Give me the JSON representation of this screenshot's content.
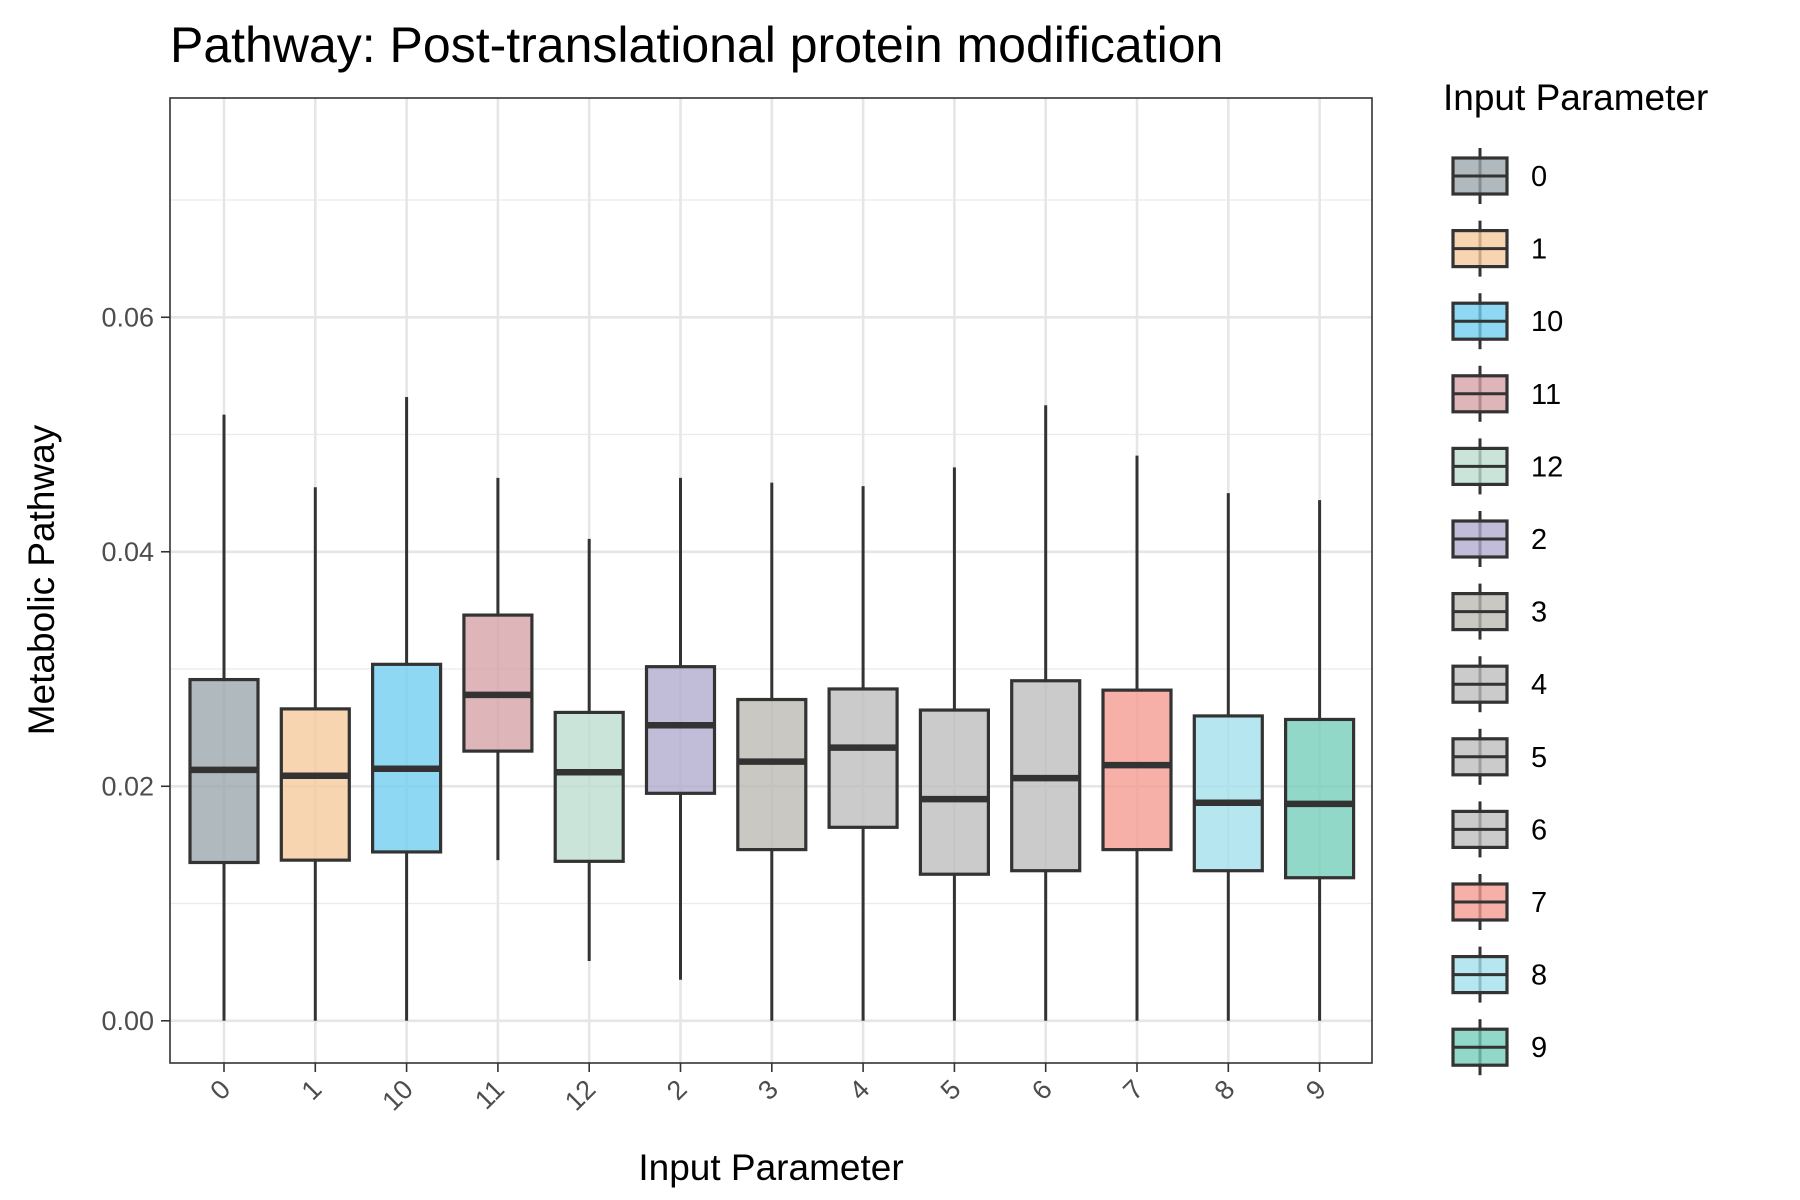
{
  "chart_data": {
    "type": "boxplot",
    "title": "Pathway: Post-translational protein modification",
    "xlabel": "Input Parameter",
    "ylabel": "Metabolic Pathway",
    "ylim": [
      -0.0036,
      0.0787
    ],
    "y_ticks": [
      "0.00",
      "0.02",
      "0.04",
      "0.06"
    ],
    "grid": true,
    "legend": {
      "title": "Input Parameter",
      "placement": "right"
    },
    "categories": [
      "0",
      "1",
      "10",
      "11",
      "12",
      "2",
      "3",
      "4",
      "5",
      "6",
      "7",
      "8",
      "9"
    ],
    "boxes": [
      {
        "category": "0",
        "whisker_low": 0.0,
        "q1": 0.0135,
        "median": 0.0214,
        "q3": 0.0291,
        "whisker_high": 0.0517,
        "color": "#9aa5ab"
      },
      {
        "category": "1",
        "whisker_low": 0.0,
        "q1": 0.0137,
        "median": 0.0209,
        "q3": 0.0266,
        "whisker_high": 0.0455,
        "color": "#f6c99b"
      },
      {
        "category": "10",
        "whisker_low": 0.0,
        "q1": 0.0144,
        "median": 0.0215,
        "q3": 0.0304,
        "whisker_high": 0.0532,
        "color": "#6ecdf0"
      },
      {
        "category": "11",
        "whisker_low": 0.0137,
        "q1": 0.023,
        "median": 0.0278,
        "q3": 0.0346,
        "whisker_high": 0.0463,
        "color": "#d5a0a5"
      },
      {
        "category": "12",
        "whisker_low": 0.0051,
        "q1": 0.0136,
        "median": 0.0212,
        "q3": 0.0263,
        "whisker_high": 0.0411,
        "color": "#bcdccf"
      },
      {
        "category": "2",
        "whisker_low": 0.0035,
        "q1": 0.0194,
        "median": 0.0252,
        "q3": 0.0302,
        "whisker_high": 0.0463,
        "color": "#afabcd"
      },
      {
        "category": "3",
        "whisker_low": 0.0,
        "q1": 0.0146,
        "median": 0.0221,
        "q3": 0.0274,
        "whisker_high": 0.0459,
        "color": "#bbb8b1"
      },
      {
        "category": "4",
        "whisker_low": 0.0,
        "q1": 0.0165,
        "median": 0.0233,
        "q3": 0.0283,
        "whisker_high": 0.0456,
        "color": "#bcbcbc"
      },
      {
        "category": "5",
        "whisker_low": 0.0,
        "q1": 0.0125,
        "median": 0.0189,
        "q3": 0.0265,
        "whisker_high": 0.0472,
        "color": "#bcbcbc"
      },
      {
        "category": "6",
        "whisker_low": 0.0,
        "q1": 0.0128,
        "median": 0.0207,
        "q3": 0.029,
        "whisker_high": 0.0525,
        "color": "#bcbcbc"
      },
      {
        "category": "7",
        "whisker_low": 0.0,
        "q1": 0.0146,
        "median": 0.0218,
        "q3": 0.0282,
        "whisker_high": 0.0482,
        "color": "#f59a90"
      },
      {
        "category": "8",
        "whisker_low": 0.0,
        "q1": 0.0128,
        "median": 0.0186,
        "q3": 0.026,
        "whisker_high": 0.045,
        "color": "#a2dfec"
      },
      {
        "category": "9",
        "whisker_low": 0.0,
        "q1": 0.0122,
        "median": 0.0185,
        "q3": 0.0257,
        "whisker_high": 0.0444,
        "color": "#73cdb8"
      }
    ]
  }
}
